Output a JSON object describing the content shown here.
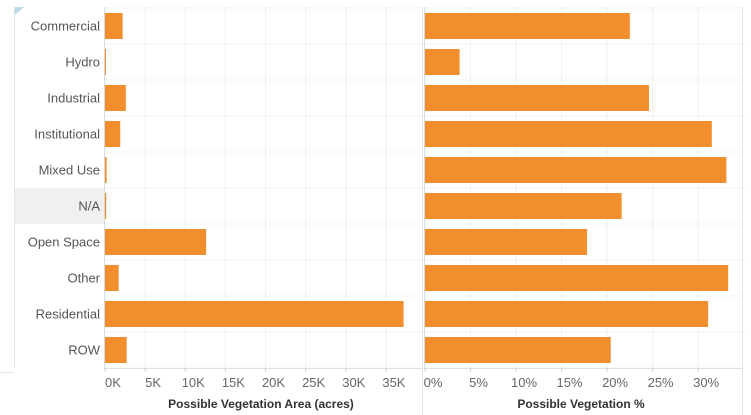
{
  "chart_data": {
    "type": "bar",
    "orientation": "horizontal",
    "categories": [
      "Commercial",
      "Hydro",
      "Industrial",
      "Institutional",
      "Mixed Use",
      "N/A",
      "Open Space",
      "Other",
      "Residential",
      "ROW"
    ],
    "highlighted_category": "N/A",
    "charts": [
      {
        "xlabel": "Possible Vegetation Area (acres)",
        "xlim": [
          0,
          38000
        ],
        "ticks": [
          0,
          5000,
          10000,
          15000,
          20000,
          25000,
          30000,
          35000
        ],
        "tick_labels": [
          "0K",
          "5K",
          "10K",
          "15K",
          "20K",
          "25K",
          "30K",
          "35K"
        ],
        "values": [
          2200,
          50,
          2600,
          1900,
          200,
          150,
          12600,
          1700,
          37200,
          2700
        ]
      },
      {
        "xlabel": "Possible Vegetation %",
        "xlim": [
          0,
          0.335
        ],
        "ticks": [
          0,
          0.05,
          0.1,
          0.15,
          0.2,
          0.25,
          0.3
        ],
        "tick_labels": [
          "0%",
          "5%",
          "10%",
          "15%",
          "20%",
          "25%",
          "30%"
        ],
        "values": [
          0.225,
          0.038,
          0.246,
          0.315,
          0.331,
          0.216,
          0.178,
          0.333,
          0.311,
          0.204
        ]
      }
    ],
    "bar_color": "#f28e2b",
    "grid": true
  }
}
